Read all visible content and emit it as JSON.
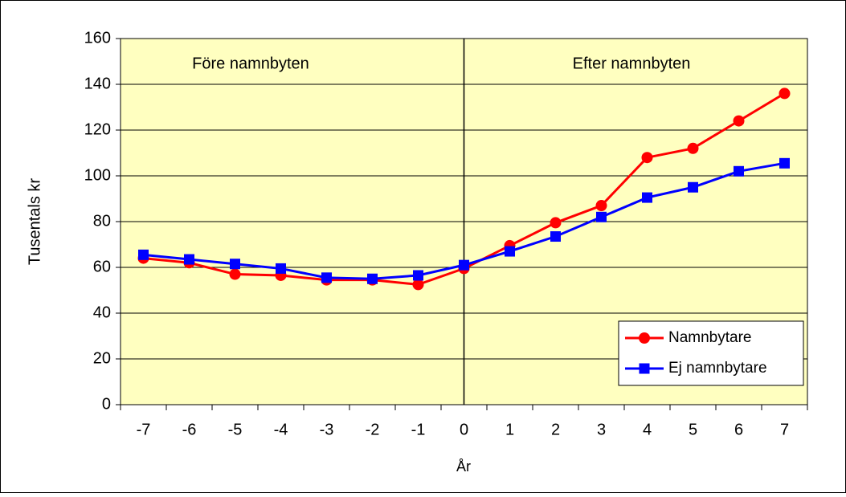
{
  "chart_data": {
    "type": "line",
    "categories": [
      -7,
      -6,
      -5,
      -4,
      -3,
      -2,
      -1,
      0,
      1,
      2,
      3,
      4,
      5,
      6,
      7
    ],
    "series": [
      {
        "name": "Namnbytare",
        "color": "#ff0000",
        "marker": "circle",
        "values": [
          64,
          62,
          57,
          56.5,
          54.5,
          54.5,
          52.5,
          59.5,
          69.5,
          79.5,
          87,
          108,
          112,
          124,
          136
        ]
      },
      {
        "name": "Ej namnbytare",
        "color": "#0000ff",
        "marker": "square",
        "values": [
          65.5,
          63.5,
          61.5,
          59.5,
          55.5,
          55,
          56.5,
          61,
          67,
          73.5,
          82,
          90.5,
          95,
          102,
          105.5
        ]
      }
    ],
    "ylim": [
      0,
      160
    ],
    "yticks": [
      0,
      20,
      40,
      60,
      80,
      100,
      120,
      140,
      160
    ],
    "grid": true,
    "xlabel": "År",
    "ylabel": "Tusentals kr",
    "annotations": [
      "Före namnbyten",
      "Efter namnbyten"
    ],
    "legend": "lower right",
    "plot_background": "#ffffc0"
  }
}
